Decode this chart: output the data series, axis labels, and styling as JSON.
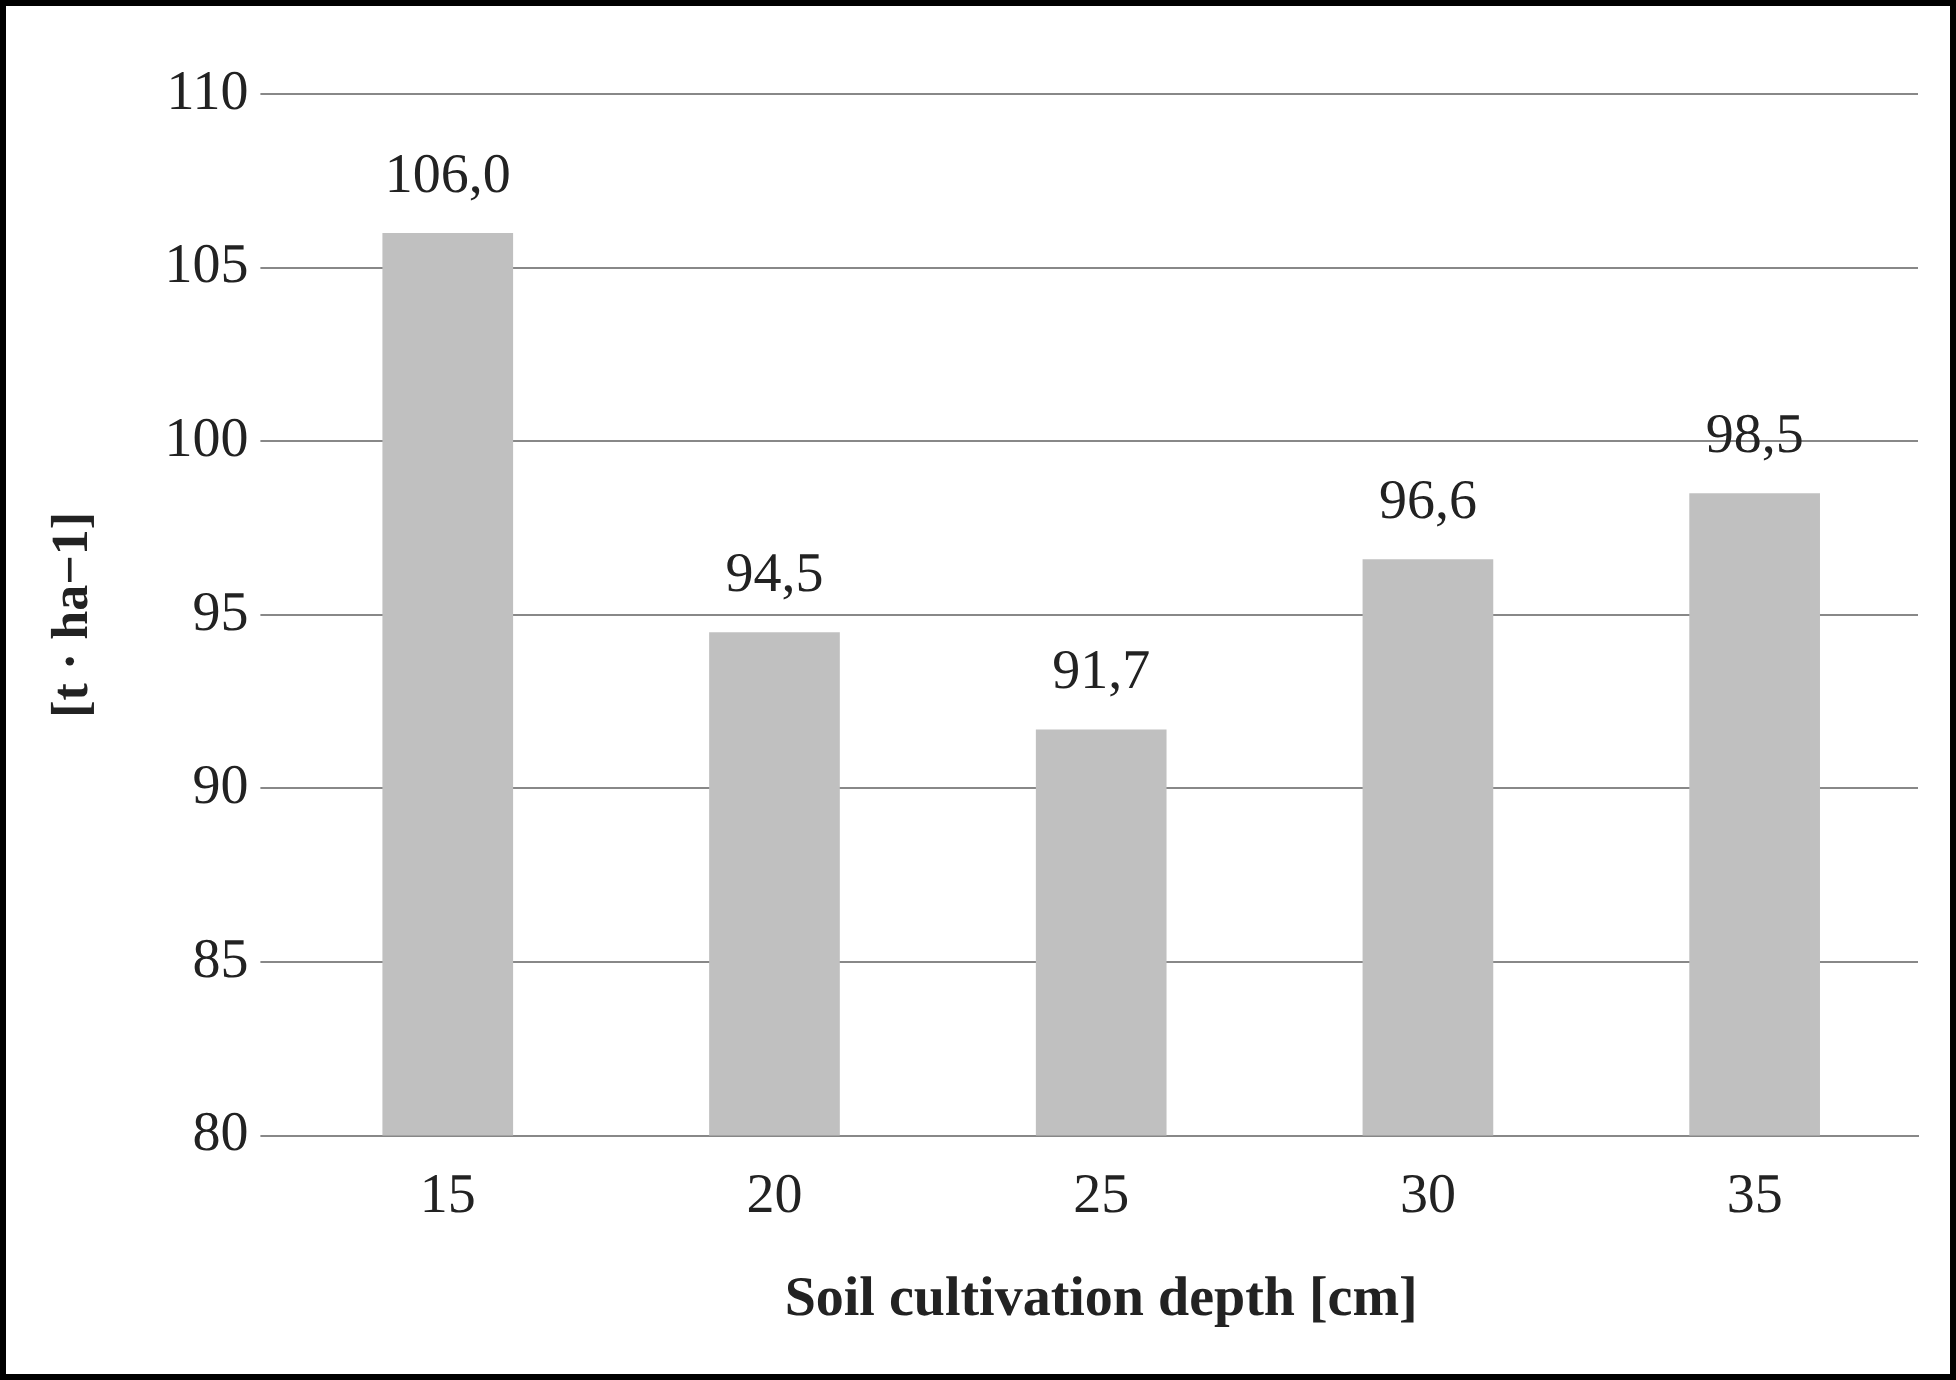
{
  "chart_data": {
    "type": "bar",
    "xlabel": "Soil cultivation depth [cm]",
    "ylabel": "[t · ha−1]",
    "categories": [
      "15",
      "20",
      "25",
      "30",
      "35"
    ],
    "values": [
      106.0,
      94.5,
      91.7,
      96.6,
      98.5
    ],
    "value_labels": [
      "106,0",
      "94,5",
      "91,7",
      "96,6",
      "98,5"
    ],
    "color": "#c0c0c0",
    "ylim": [
      80,
      110
    ],
    "yticks": [
      80,
      85,
      90,
      95,
      100,
      105,
      110
    ],
    "grid": "y",
    "legend": false
  }
}
